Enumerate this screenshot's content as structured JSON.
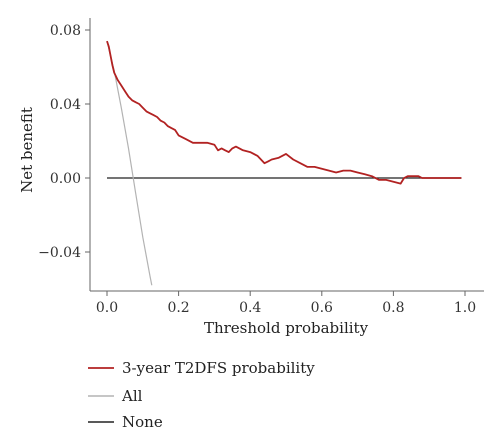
{
  "chart_data": {
    "type": "line",
    "title": "",
    "xlabel": "Threshold probability",
    "ylabel": "Net benefit",
    "xlim": [
      0.0,
      1.0
    ],
    "ylim": [
      -0.055,
      0.08
    ],
    "x_ticks": [
      0.0,
      0.2,
      0.4,
      0.6,
      0.8,
      1.0
    ],
    "x_tick_labels": [
      "0.0",
      "0.2",
      "0.4",
      "0.6",
      "0.8",
      "1.0"
    ],
    "y_ticks": [
      0.08,
      0.04,
      0.0,
      -0.04
    ],
    "y_tick_labels": [
      "0.08",
      "0.04",
      "0.00",
      "−0.04"
    ],
    "grid": false,
    "legend_position": "bottom-left",
    "series": [
      {
        "name": "3-year T2DFS probability",
        "color": "#b22222",
        "x": [
          0.0,
          0.005,
          0.01,
          0.015,
          0.02,
          0.03,
          0.04,
          0.05,
          0.06,
          0.07,
          0.08,
          0.09,
          0.1,
          0.11,
          0.12,
          0.13,
          0.14,
          0.15,
          0.16,
          0.17,
          0.18,
          0.19,
          0.2,
          0.22,
          0.24,
          0.26,
          0.28,
          0.3,
          0.31,
          0.32,
          0.33,
          0.34,
          0.35,
          0.36,
          0.38,
          0.4,
          0.42,
          0.44,
          0.45,
          0.46,
          0.48,
          0.5,
          0.52,
          0.54,
          0.56,
          0.58,
          0.6,
          0.62,
          0.64,
          0.66,
          0.68,
          0.7,
          0.72,
          0.74,
          0.76,
          0.78,
          0.8,
          0.82,
          0.83,
          0.84,
          0.86,
          0.87,
          0.88,
          0.9,
          0.95,
          0.99
        ],
        "values": [
          0.074,
          0.071,
          0.066,
          0.061,
          0.057,
          0.053,
          0.05,
          0.047,
          0.044,
          0.042,
          0.041,
          0.04,
          0.038,
          0.036,
          0.035,
          0.034,
          0.033,
          0.031,
          0.03,
          0.028,
          0.027,
          0.026,
          0.023,
          0.021,
          0.019,
          0.019,
          0.019,
          0.018,
          0.015,
          0.016,
          0.015,
          0.014,
          0.016,
          0.017,
          0.015,
          0.014,
          0.012,
          0.008,
          0.009,
          0.01,
          0.011,
          0.013,
          0.01,
          0.008,
          0.006,
          0.006,
          0.005,
          0.004,
          0.003,
          0.004,
          0.004,
          0.003,
          0.002,
          0.001,
          -0.001,
          -0.001,
          -0.002,
          -0.003,
          0.0,
          0.001,
          0.001,
          0.001,
          0.0,
          0.0,
          0.0,
          0.0
        ]
      },
      {
        "name": "All",
        "color": "#b3b3b3",
        "x": [
          0.0,
          0.02,
          0.04,
          0.06,
          0.08,
          0.1,
          0.12,
          0.125
        ],
        "values": [
          0.074,
          0.058,
          0.038,
          0.016,
          -0.008,
          -0.032,
          -0.053,
          -0.058
        ]
      },
      {
        "name": "None",
        "color": "#222222",
        "x": [
          0.0,
          0.99
        ],
        "values": [
          0.0,
          0.0
        ]
      }
    ]
  }
}
